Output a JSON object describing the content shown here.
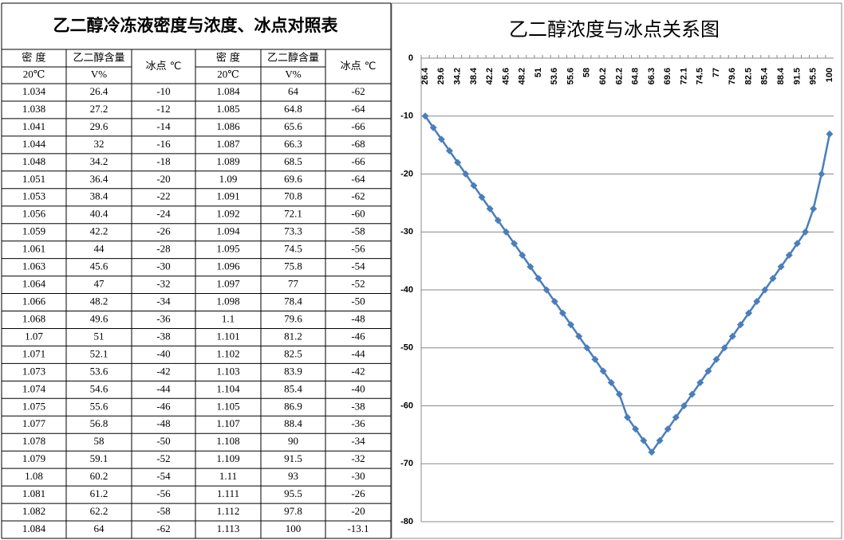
{
  "table": {
    "title": "乙二醇冷冻液密度与浓度、冰点对照表",
    "header": [
      [
        "密 度",
        "乙二醇含量",
        "冰点 ℃",
        "密 度",
        "乙二醇含量",
        "冰点 ℃"
      ],
      [
        "20℃",
        "V%",
        "20℃",
        "V%"
      ]
    ],
    "rows": [
      [
        1.034,
        26.4,
        -10,
        1.084,
        64,
        -62
      ],
      [
        1.038,
        27.2,
        -12,
        1.085,
        64.8,
        -64
      ],
      [
        1.041,
        29.6,
        -14,
        1.086,
        65.6,
        -66
      ],
      [
        1.044,
        32,
        -16,
        1.087,
        66.3,
        -68
      ],
      [
        1.048,
        34.2,
        -18,
        1.089,
        68.5,
        -66
      ],
      [
        1.051,
        36.4,
        -20,
        1.09,
        69.6,
        -64
      ],
      [
        1.053,
        38.4,
        -22,
        1.091,
        70.8,
        -62
      ],
      [
        1.056,
        40.4,
        -24,
        1.092,
        72.1,
        -60
      ],
      [
        1.059,
        42.2,
        -26,
        1.094,
        73.3,
        -58
      ],
      [
        1.061,
        44,
        -28,
        1.095,
        74.5,
        -56
      ],
      [
        1.063,
        45.6,
        -30,
        1.096,
        75.8,
        -54
      ],
      [
        1.064,
        47,
        -32,
        1.097,
        77,
        -52
      ],
      [
        1.066,
        48.2,
        -34,
        1.098,
        78.4,
        -50
      ],
      [
        1.068,
        49.6,
        -36,
        1.1,
        79.6,
        -48
      ],
      [
        1.07,
        51,
        -38,
        1.101,
        81.2,
        -46
      ],
      [
        1.071,
        52.1,
        -40,
        1.102,
        82.5,
        -44
      ],
      [
        1.073,
        53.6,
        -42,
        1.103,
        83.9,
        -42
      ],
      [
        1.074,
        54.6,
        -44,
        1.104,
        85.4,
        -40
      ],
      [
        1.075,
        55.6,
        -46,
        1.105,
        86.9,
        -38
      ],
      [
        1.077,
        56.8,
        -48,
        1.107,
        88.4,
        -36
      ],
      [
        1.078,
        58,
        -50,
        1.108,
        90,
        -34
      ],
      [
        1.079,
        59.1,
        -52,
        1.109,
        91.5,
        -32
      ],
      [
        1.08,
        60.2,
        -54,
        1.11,
        93,
        -30
      ],
      [
        1.081,
        61.2,
        -56,
        1.111,
        95.5,
        -26
      ],
      [
        1.082,
        62.2,
        -58,
        1.112,
        97.8,
        -20
      ],
      [
        1.084,
        64,
        -62,
        1.113,
        100,
        -13.1
      ]
    ]
  },
  "chart_data": {
    "type": "line",
    "title": "乙二醇浓度与冰点关系图",
    "categories": [
      26.4,
      null,
      29.6,
      null,
      34.2,
      null,
      38.4,
      null,
      42.2,
      null,
      45.6,
      null,
      48.2,
      null,
      51,
      null,
      53.6,
      null,
      55.6,
      null,
      58,
      null,
      60.2,
      null,
      62.2,
      null,
      64.8,
      null,
      66.3,
      null,
      69.6,
      null,
      72.1,
      null,
      74.5,
      null,
      77,
      null,
      79.6,
      null,
      82.5,
      null,
      85.4,
      null,
      88.4,
      null,
      91.5,
      null,
      95.5,
      null,
      100
    ],
    "series": [
      {
        "color": "#4a7ebb",
        "values": [
          -10,
          -12,
          -14,
          -16,
          -18,
          -20,
          -22,
          -24,
          -26,
          -28,
          -30,
          -32,
          -34,
          -36,
          -38,
          -40,
          -42,
          -44,
          -46,
          -48,
          -50,
          -52,
          -54,
          -56,
          -58,
          -62,
          -64,
          -66,
          -68,
          -66,
          -64,
          -62,
          -60,
          -58,
          -56,
          -54,
          -52,
          -50,
          -48,
          -46,
          -44,
          -42,
          -40,
          -38,
          -36,
          -34,
          -32,
          -30,
          -26,
          -20,
          -13.1
        ]
      }
    ],
    "ylim": [
      -80,
      0
    ],
    "yticks": [
      0,
      -10,
      -20,
      -30,
      -40,
      -50,
      -60,
      -70,
      -80
    ],
    "grid": true
  }
}
